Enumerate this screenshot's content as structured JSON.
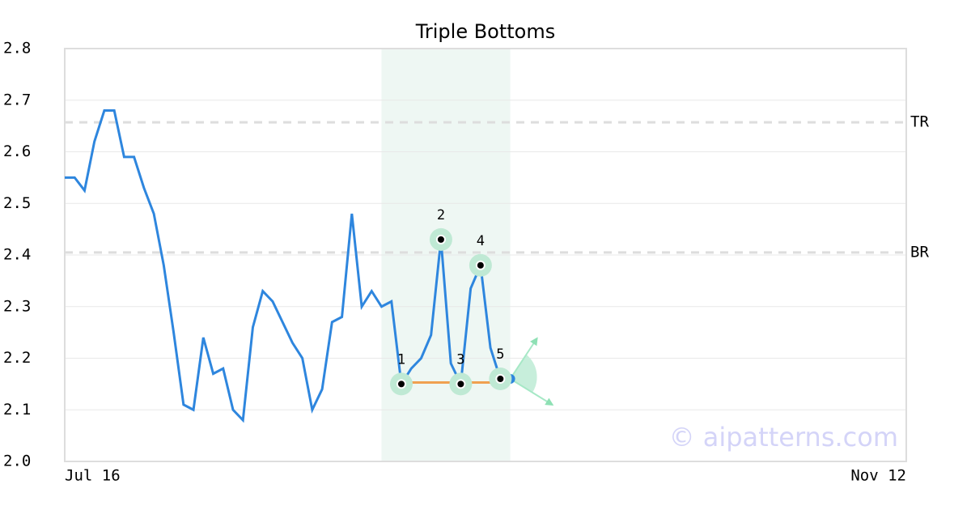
{
  "chart_data": {
    "type": "line",
    "title": "Triple Bottoms",
    "series": [
      {
        "name": "price",
        "color": "#2e86de",
        "x": [
          0,
          1,
          2,
          3,
          4,
          5,
          6,
          7,
          8,
          9,
          10,
          11,
          12,
          13,
          14,
          15,
          16,
          17,
          18,
          19,
          20,
          21,
          22,
          23,
          24,
          25,
          26,
          27,
          28,
          29,
          30,
          31,
          32,
          33,
          34,
          35,
          36,
          37,
          38,
          39,
          40,
          41,
          42,
          43,
          44,
          45
        ],
        "values": [
          2.55,
          2.55,
          2.525,
          2.62,
          2.68,
          2.68,
          2.59,
          2.59,
          2.53,
          2.48,
          2.38,
          2.25,
          2.11,
          2.1,
          2.24,
          2.17,
          2.18,
          2.1,
          2.08,
          2.26,
          2.33,
          2.31,
          2.27,
          2.23,
          2.2,
          2.1,
          2.14,
          2.27,
          2.28,
          2.48,
          2.3,
          2.33,
          2.3,
          2.31,
          2.15,
          2.18,
          2.2,
          2.245,
          2.43,
          2.19,
          2.15,
          2.335,
          2.38,
          2.22,
          2.16,
          2.16
        ]
      }
    ],
    "xlim": [
      0,
      85
    ],
    "xticks": [
      {
        "value": 0,
        "label": "Jul 16"
      },
      {
        "value": 85,
        "label": "Nov 12"
      }
    ],
    "ylim": [
      2.0,
      2.8
    ],
    "yticks": [
      {
        "value": 2.0,
        "label": "2.0"
      },
      2.1,
      2.2,
      2.3,
      2.4,
      2.5,
      2.6,
      2.7,
      2.8
    ],
    "grid": true,
    "highlight_xlim": [
      32,
      45
    ],
    "levels": [
      {
        "name": "TR",
        "value": 2.657
      },
      {
        "name": "BR",
        "value": 2.405
      }
    ],
    "support": 2.153,
    "pattern_points": [
      {
        "label": "1",
        "x": 34,
        "y": 2.15
      },
      {
        "label": "2",
        "x": 38,
        "y": 2.43
      },
      {
        "label": "3",
        "x": 40,
        "y": 2.15
      },
      {
        "label": "4",
        "x": 42,
        "y": 2.38
      },
      {
        "label": "5",
        "x": 44,
        "y": 2.16
      }
    ],
    "watermark": "© aipatterns.com"
  }
}
